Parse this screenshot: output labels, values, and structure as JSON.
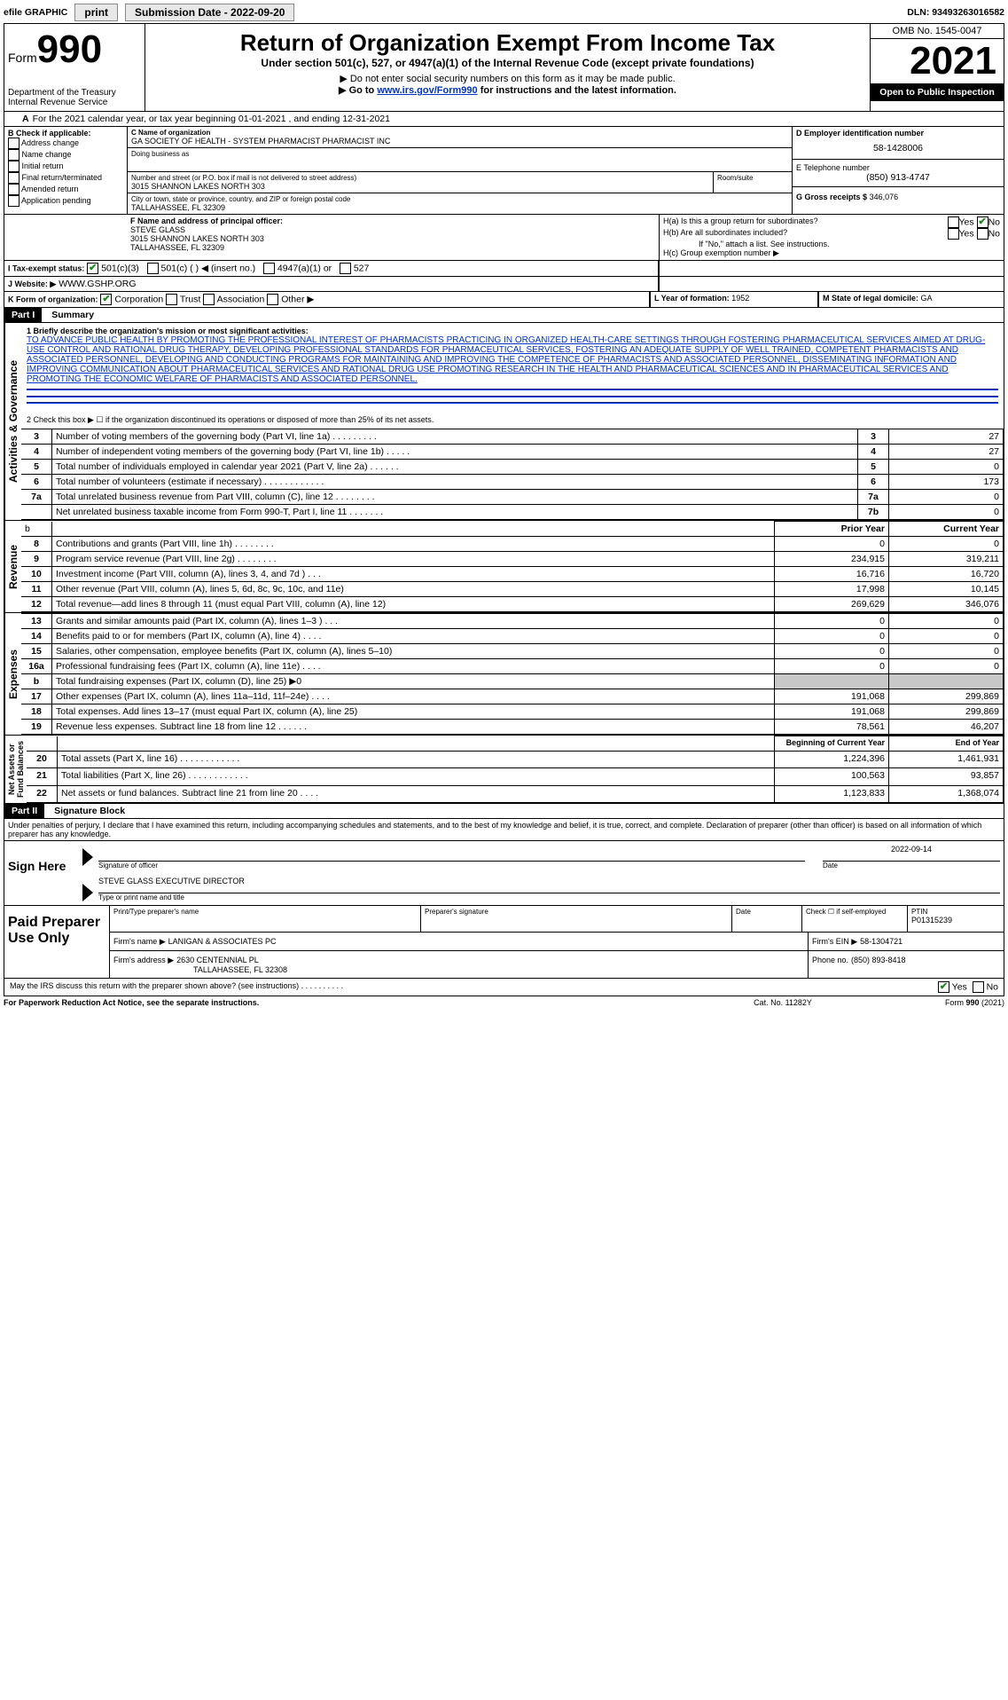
{
  "topbar": {
    "efile": "efile GRAPHIC",
    "print": "print",
    "submission_label": "Submission Date - 2022-09-20",
    "dln_label": "DLN: 93493263016582"
  },
  "header": {
    "form_label": "Form",
    "form_number": "990",
    "title": "Return of Organization Exempt From Income Tax",
    "subtitle1": "Under section 501(c), 527, or 4947(a)(1) of the Internal Revenue Code (except private foundations)",
    "subtitle2": "▶ Do not enter social security numbers on this form as it may be made public.",
    "subtitle3_prefix": "▶ Go to ",
    "subtitle3_link": "www.irs.gov/Form990",
    "subtitle3_suffix": " for instructions and the latest information.",
    "dept": "Department of the Treasury",
    "irs": "Internal Revenue Service",
    "omb": "OMB No. 1545-0047",
    "year": "2021",
    "inspect": "Open to Public Inspection"
  },
  "lineA": "For the 2021 calendar year, or tax year beginning 01-01-2021    , and ending 12-31-2021",
  "boxB": {
    "label": "B Check if applicable:",
    "opts": [
      "Address change",
      "Name change",
      "Initial return",
      "Final return/terminated",
      "Amended return",
      "Application pending"
    ]
  },
  "boxC": {
    "label": "C Name of organization",
    "name": "GA SOCIETY OF HEALTH - SYSTEM PHARMACIST PHARMACIST INC",
    "dba_label": "Doing business as",
    "addr_label": "Number and street (or P.O. box if mail is not delivered to street address)",
    "room_label": "Room/suite",
    "addr": "3015 SHANNON LAKES NORTH 303",
    "city_label": "City or town, state or province, country, and ZIP or foreign postal code",
    "city": "TALLAHASSEE, FL  32309"
  },
  "boxD": {
    "label": "D Employer identification number",
    "value": "58-1428006"
  },
  "boxE": {
    "label": "E Telephone number",
    "value": "(850) 913-4747"
  },
  "boxG": {
    "label": "G Gross receipts $",
    "value": "346,076"
  },
  "boxF": {
    "label": "F  Name and address of principal officer:",
    "name": "STEVE GLASS",
    "addr1": "3015 SHANNON LAKES NORTH 303",
    "addr2": "TALLAHASSEE, FL  32309"
  },
  "boxH": {
    "h_a": "H(a)  Is this a group return for subordinates?",
    "h_b": "H(b)  Are all subordinates included?",
    "h_note": "If \"No,\" attach a list. See instructions.",
    "h_c": "H(c)  Group exemption number ▶",
    "yes": "Yes",
    "no": "No"
  },
  "boxI": {
    "label": "I    Tax-exempt status:",
    "o1": "501(c)(3)",
    "o2": "501(c) (  ) ◀ (insert no.)",
    "o3": "4947(a)(1) or",
    "o4": "527"
  },
  "boxJ": {
    "label": "J    Website: ▶",
    "value": "WWW.GSHP.ORG"
  },
  "boxK": {
    "label": "K Form of organization:",
    "o1": "Corporation",
    "o2": "Trust",
    "o3": "Association",
    "o4": "Other ▶"
  },
  "boxL": {
    "label": "L Year of formation: ",
    "value": "1952"
  },
  "boxM": {
    "label": "M State of legal domicile: ",
    "value": "GA"
  },
  "part1": {
    "tag": "Part I",
    "title": "Summary"
  },
  "summary": {
    "line1_label": "1   Briefly describe the organization's mission or most significant activities:",
    "mission": "TO ADVANCE PUBLIC HEALTH BY PROMOTING THE PROFESSIONAL INTEREST OF PHARMACISTS PRACTICING IN ORGANIZED HEALTH-CARE SETTINGS THROUGH FOSTERING PHARMACEUTICAL SERVICES AIMED AT DRUG-USE CONTROL AND RATIONAL DRUG THERAPY, DEVELOPING PROFESSIONAL STANDARDS FOR PHARMACEUTICAL SERVICES, FOSTERING AN ADEQUATE SUPPLY OF WELL TRAINED, COMPETENT PHARMACISTS AND ASSOCIATED PERSONNEL, DEVELOPING AND CONDUCTING PROGRAMS FOR MAINTAINING AND IMPROVING THE COMPETENCE OF PHARMACISTS AND ASSOCIATED PERSONNEL, DISSEMINATING INFORMATION AND IMPROVING COMMUNICATION ABOUT PHARMACEUTICAL SERVICES AND RATIONAL DRUG USE PROMOTING RESEARCH IN THE HEALTH AND PHARMACEUTICAL SCIENCES AND IN PHARMACEUTICAL SERVICES AND PROMOTING THE ECONOMIC WELFARE OF PHARMACISTS AND ASSOCIATED PERSONNEL.",
    "line2": "2   Check this box ▶ ☐  if the organization discontinued its operations or disposed of more than 25% of its net assets.",
    "gov_rows": [
      {
        "n": "3",
        "t": "Number of voting members of the governing body (Part VI, line 1a)   .    .    .    .    .    .    .    .    .",
        "box": "3",
        "v": "27"
      },
      {
        "n": "4",
        "t": "Number of independent voting members of the governing body (Part VI, line 1b)   .    .    .    .    .",
        "box": "4",
        "v": "27"
      },
      {
        "n": "5",
        "t": "Total number of individuals employed in calendar year 2021 (Part V, line 2a)   .    .    .    .    .    .",
        "box": "5",
        "v": "0"
      },
      {
        "n": "6",
        "t": "Total number of volunteers (estimate if necessary)   .    .    .    .    .    .    .    .    .    .    .    .",
        "box": "6",
        "v": "173"
      },
      {
        "n": "7a",
        "t": "Total unrelated business revenue from Part VIII, column (C), line 12   .    .    .    .    .    .    .    .",
        "box": "7a",
        "v": "0"
      },
      {
        "n": "",
        "t": "Net unrelated business taxable income from Form 990-T, Part I, line 11   .    .    .    .    .    .    .",
        "box": "7b",
        "v": "0"
      }
    ],
    "prior_year": "Prior Year",
    "current_year": "Current Year",
    "rev_rows": [
      {
        "n": "8",
        "t": "Contributions and grants (Part VIII, line 1h)   .    .    .    .    .    .    .    .",
        "p": "0",
        "c": "0"
      },
      {
        "n": "9",
        "t": "Program service revenue (Part VIII, line 2g)   .    .    .    .    .    .    .    .",
        "p": "234,915",
        "c": "319,211"
      },
      {
        "n": "10",
        "t": "Investment income (Part VIII, column (A), lines 3, 4, and 7d )   .    .    .",
        "p": "16,716",
        "c": "16,720"
      },
      {
        "n": "11",
        "t": "Other revenue (Part VIII, column (A), lines 5, 6d, 8c, 9c, 10c, and 11e)",
        "p": "17,998",
        "c": "10,145"
      },
      {
        "n": "12",
        "t": "Total revenue—add lines 8 through 11 (must equal Part VIII, column (A), line 12)",
        "p": "269,629",
        "c": "346,076"
      }
    ],
    "exp_rows": [
      {
        "n": "13",
        "t": "Grants and similar amounts paid (Part IX, column (A), lines 1–3 )   .    .    .",
        "p": "0",
        "c": "0"
      },
      {
        "n": "14",
        "t": "Benefits paid to or for members (Part IX, column (A), line 4)   .    .    .    .",
        "p": "0",
        "c": "0"
      },
      {
        "n": "15",
        "t": "Salaries, other compensation, employee benefits (Part IX, column (A), lines 5–10)",
        "p": "0",
        "c": "0"
      },
      {
        "n": "16a",
        "t": "Professional fundraising fees (Part IX, column (A), line 11e)   .    .    .    .",
        "p": "0",
        "c": "0"
      },
      {
        "n": "b",
        "t": "Total fundraising expenses (Part IX, column (D), line 25) ▶0",
        "p": "",
        "c": "",
        "shade": true
      },
      {
        "n": "17",
        "t": "Other expenses (Part IX, column (A), lines 11a–11d, 11f–24e)   .    .    .    .",
        "p": "191,068",
        "c": "299,869"
      },
      {
        "n": "18",
        "t": "Total expenses. Add lines 13–17 (must equal Part IX, column (A), line 25)",
        "p": "191,068",
        "c": "299,869"
      },
      {
        "n": "19",
        "t": "Revenue less expenses. Subtract line 18 from line 12   .    .    .    .    .    .",
        "p": "78,561",
        "c": "46,207"
      }
    ],
    "begin_year": "Beginning of Current Year",
    "end_year": "End of Year",
    "net_rows": [
      {
        "n": "20",
        "t": "Total assets (Part X, line 16)   .    .    .    .    .    .    .    .    .    .    .    .",
        "p": "1,224,396",
        "c": "1,461,931"
      },
      {
        "n": "21",
        "t": "Total liabilities (Part X, line 26)   .    .    .    .    .    .    .    .    .    .    .    .",
        "p": "100,563",
        "c": "93,857"
      },
      {
        "n": "22",
        "t": "Net assets or fund balances. Subtract line 21 from line 20   .    .    .    .",
        "p": "1,123,833",
        "c": "1,368,074"
      }
    ]
  },
  "part2": {
    "tag": "Part II",
    "title": "Signature Block"
  },
  "sig": {
    "jurat": "Under penalties of perjury, I declare that I have examined this return, including accompanying schedules and statements, and to the best of my knowledge and belief, it is true, correct, and complete. Declaration of preparer (other than officer) is based on all information of which preparer has any knowledge.",
    "sign_here": "Sign Here",
    "sig_officer": "Signature of officer",
    "date": "Date",
    "date_val": "2022-09-14",
    "name_title": "STEVE GLASS  EXECUTIVE DIRECTOR",
    "type_name": "Type or print name and title",
    "paid": "Paid Preparer Use Only",
    "pp_name_label": "Print/Type preparer's name",
    "pp_sig_label": "Preparer's signature",
    "pp_date": "Date",
    "pp_check": "Check ☐ if self-employed",
    "ptin_label": "PTIN",
    "ptin": "P01315239",
    "firm_name_label": "Firm's name    ▶",
    "firm_name": "LANIGAN & ASSOCIATES PC",
    "firm_ein_label": "Firm's EIN ▶",
    "firm_ein": "58-1304721",
    "firm_addr_label": "Firm's address ▶",
    "firm_addr1": "2630 CENTENNIAL PL",
    "firm_addr2": "TALLAHASSEE, FL  32308",
    "phone_label": "Phone no.",
    "phone": "(850) 893-8418",
    "may_irs": "May the IRS discuss this return with the preparer shown above? (see instructions)   .    .    .    .    .    .    .    .    .    ."
  },
  "footer": {
    "left": "For Paperwork Reduction Act Notice, see the separate instructions.",
    "mid": "Cat. No. 11282Y",
    "right": "Form 990 (2021)"
  },
  "colors": {
    "link": "#0033cc",
    "check": "#1a8a1a"
  }
}
